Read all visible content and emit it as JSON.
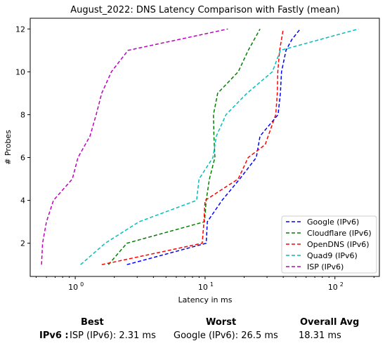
{
  "chart_data": {
    "type": "line",
    "title": "August_2022: DNS Latency Comparison with Fastly (mean)",
    "xlabel": "Latency in ms",
    "ylabel": "# Probes",
    "xscale": "log",
    "xlim": [
      0.45,
      220
    ],
    "ylim": [
      0.45,
      12.5
    ],
    "xticks": [
      {
        "value": 1,
        "label": "10",
        "sup": "0"
      },
      {
        "value": 10,
        "label": "10",
        "sup": "1"
      },
      {
        "value": 100,
        "label": "10",
        "sup": "2"
      }
    ],
    "yticks": [
      2,
      4,
      6,
      8,
      10,
      12
    ],
    "grid": false,
    "legend": "bottom-right",
    "series": [
      {
        "name": "Google (IPv6)",
        "color": "#0000ff",
        "x": [
          2.5,
          10.2,
          10.4,
          13.5,
          18.5,
          24.8,
          26.5,
          36.5,
          38,
          38.8,
          42,
          46.5,
          54
        ],
        "y": [
          1,
          2,
          3,
          4,
          5,
          6,
          7,
          8,
          9,
          10,
          11,
          11.5,
          12
        ]
      },
      {
        "name": "Cloudflare (IPv6)",
        "color": "#008000",
        "x": [
          1.8,
          2.5,
          9.9,
          10.2,
          10.8,
          11.9,
          11.7,
          11.6,
          12.5,
          18,
          21.5,
          26.5
        ],
        "y": [
          1,
          2,
          3,
          4,
          5,
          6,
          7,
          8,
          9,
          10,
          11,
          12
        ]
      },
      {
        "name": "OpenDNS (IPv6)",
        "color": "#ff0000",
        "x": [
          1.6,
          9.5,
          9.8,
          10,
          18,
          21.5,
          29,
          35,
          36,
          36.3,
          37.5,
          40
        ],
        "y": [
          1,
          2,
          3,
          4,
          5,
          6,
          6.6,
          8,
          9,
          10,
          11,
          12
        ]
      },
      {
        "name": "Quad9 (IPv6)",
        "color": "#00bfbf",
        "x": [
          1.1,
          1.7,
          3.1,
          8.6,
          9.0,
          11.5,
          12.2,
          14.5,
          21,
          33,
          38,
          152
        ],
        "y": [
          1,
          2,
          3,
          4,
          5,
          6,
          7,
          8,
          9,
          10,
          11,
          12
        ]
      },
      {
        "name": "ISP (IPv6)",
        "color": "#bf00bf",
        "x": [
          0.55,
          0.56,
          0.6,
          0.68,
          0.95,
          1.05,
          1.3,
          1.45,
          1.6,
          1.9,
          2.55,
          15
        ],
        "y": [
          1,
          2,
          3,
          4,
          5,
          6,
          7,
          8,
          9,
          10,
          11,
          12
        ]
      }
    ]
  },
  "summary": {
    "best_header": "Best",
    "worst_header": "Worst",
    "avg_header": "Overall Avg",
    "row_label": "IPv6 :",
    "best_value": "ISP (IPv6): 2.31 ms",
    "worst_value": "Google (IPv6): 26.5 ms",
    "avg_value": "18.31 ms"
  }
}
